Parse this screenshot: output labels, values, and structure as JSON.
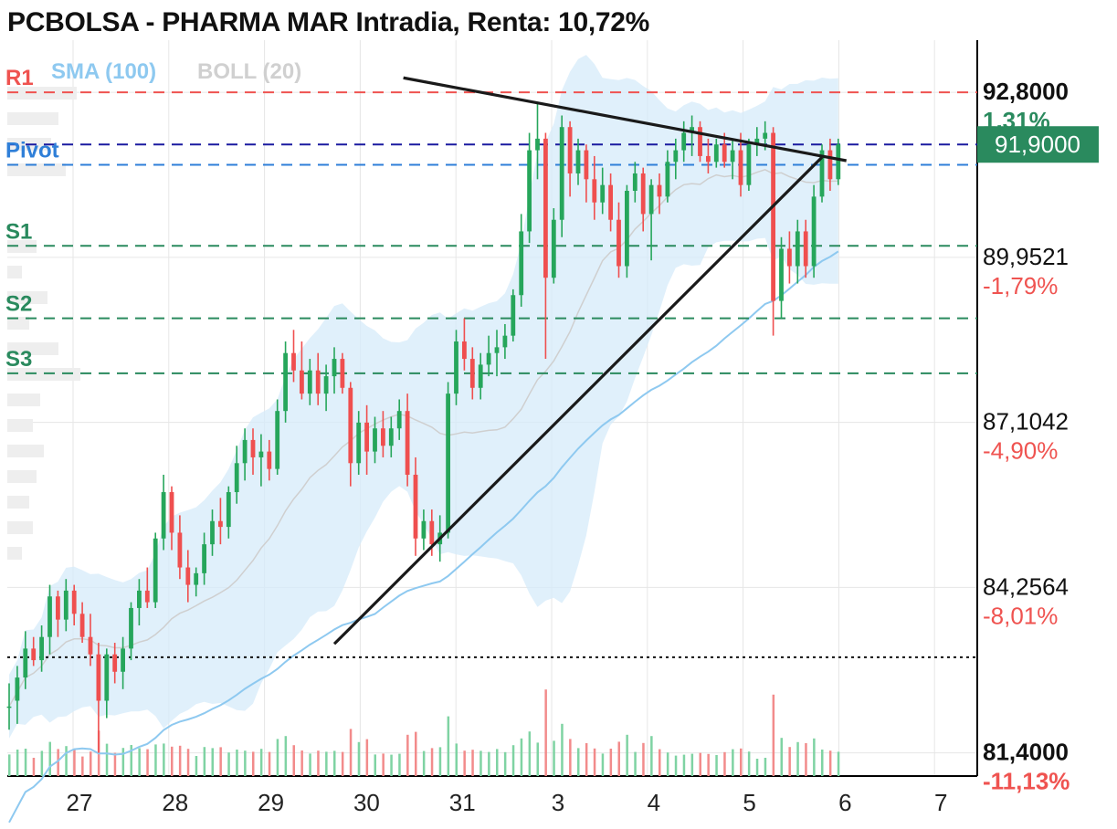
{
  "title": "PCBOLSA - PHARMA MAR Intradia, Renta: 10,72%",
  "indicators": [
    {
      "label": "SMA (100)",
      "color": "#8ec9f0"
    },
    {
      "label": "BOLL (20)",
      "color": "#d0d0d0"
    }
  ],
  "chart_data": {
    "type": "candlestick",
    "title": "PCBOLSA - PHARMA MAR Intradia, Renta: 10,72%",
    "ylim": [
      81.0,
      93.7
    ],
    "grid": true,
    "x_ticks": [
      "27",
      "28",
      "29",
      "30",
      "31",
      "3",
      "4",
      "5",
      "6",
      "7"
    ],
    "price_axis": [
      {
        "price": 92.8,
        "label": "92,8000",
        "pct": "1,31%",
        "bold": true,
        "pct_color": "#2a8a5e"
      },
      {
        "price": 89.9521,
        "label": "89,9521",
        "pct": "-1,79%",
        "bold": false,
        "pct_color": "#ef5350"
      },
      {
        "price": 87.1042,
        "label": "87,1042",
        "pct": "-4,90%",
        "bold": false,
        "pct_color": "#ef5350"
      },
      {
        "price": 84.2564,
        "label": "84,2564",
        "pct": "-8,01%",
        "bold": false,
        "pct_color": "#ef5350"
      },
      {
        "price": 81.4,
        "label": "81,4000",
        "pct": "-11,13%",
        "bold": true,
        "pct_color": "#ef5350"
      }
    ],
    "last_price": {
      "value": 91.9,
      "label": "91,9000",
      "color": "#2a8a5e"
    },
    "levels": [
      {
        "name": "R1",
        "price": 92.8,
        "color": "#ef5350"
      },
      {
        "name": "",
        "price": 91.9,
        "color": "#1a1aa0"
      },
      {
        "name": "Pivot",
        "price": 91.55,
        "color": "#2f7fd8"
      },
      {
        "name": "S1",
        "price": 90.15,
        "color": "#2a8a5e"
      },
      {
        "name": "S2",
        "price": 88.9,
        "color": "#2a8a5e"
      },
      {
        "name": "S3",
        "price": 87.95,
        "color": "#2a8a5e"
      }
    ],
    "reference_close": 83.05,
    "trendlines": [
      {
        "from": [
          48.5,
          93.05
        ],
        "to": [
          103,
          91.62
        ]
      },
      {
        "from": [
          40,
          83.28
        ],
        "to": [
          100,
          91.68
        ]
      }
    ],
    "candles": [
      [
        82.2,
        82.6,
        81.8,
        82.2
      ],
      [
        82.3,
        82.9,
        81.9,
        82.7
      ],
      [
        82.7,
        83.5,
        82.5,
        83.2
      ],
      [
        83.2,
        83.4,
        82.9,
        83.0
      ],
      [
        83.0,
        83.6,
        82.8,
        83.4
      ],
      [
        83.4,
        84.3,
        83.1,
        84.1
      ],
      [
        84.1,
        84.2,
        83.4,
        83.7
      ],
      [
        83.7,
        84.4,
        83.5,
        84.2
      ],
      [
        84.2,
        84.3,
        83.6,
        83.8
      ],
      [
        83.8,
        84.0,
        83.3,
        83.4
      ],
      [
        83.4,
        83.8,
        82.9,
        83.1
      ],
      [
        83.1,
        83.3,
        81.4,
        82.3
      ],
      [
        82.3,
        83.2,
        82.0,
        83.1
      ],
      [
        83.1,
        83.3,
        82.6,
        82.8
      ],
      [
        82.8,
        83.4,
        82.5,
        83.2
      ],
      [
        83.2,
        84.0,
        83.0,
        83.9
      ],
      [
        83.9,
        84.4,
        83.6,
        84.2
      ],
      [
        84.2,
        84.6,
        83.9,
        84.0
      ],
      [
        84.0,
        85.2,
        83.9,
        85.1
      ],
      [
        85.1,
        86.2,
        84.9,
        85.9
      ],
      [
        85.9,
        86.0,
        84.9,
        85.2
      ],
      [
        85.2,
        85.5,
        84.4,
        84.6
      ],
      [
        84.6,
        84.9,
        84.0,
        84.3
      ],
      [
        84.3,
        84.6,
        84.1,
        84.5
      ],
      [
        84.5,
        85.2,
        84.3,
        85.0
      ],
      [
        85.0,
        85.6,
        84.8,
        85.4
      ],
      [
        85.4,
        85.8,
        85.0,
        85.3
      ],
      [
        85.3,
        86.0,
        85.1,
        85.9
      ],
      [
        85.9,
        86.7,
        85.7,
        86.4
      ],
      [
        86.4,
        87.0,
        86.1,
        86.8
      ],
      [
        86.8,
        87.0,
        86.2,
        86.5
      ],
      [
        86.5,
        86.9,
        86.0,
        86.6
      ],
      [
        86.6,
        86.8,
        86.1,
        86.3
      ],
      [
        86.3,
        87.5,
        86.2,
        87.3
      ],
      [
        87.3,
        88.5,
        87.1,
        88.3
      ],
      [
        88.3,
        88.7,
        87.8,
        88.0
      ],
      [
        88.0,
        88.5,
        87.5,
        87.6
      ],
      [
        87.6,
        88.2,
        87.4,
        88.0
      ],
      [
        88.0,
        88.3,
        87.4,
        87.6
      ],
      [
        87.6,
        88.1,
        87.3,
        87.9
      ],
      [
        87.9,
        88.4,
        87.6,
        88.2
      ],
      [
        88.2,
        88.3,
        87.6,
        87.7
      ],
      [
        87.7,
        87.8,
        86.0,
        86.4
      ],
      [
        86.4,
        87.3,
        86.2,
        87.1
      ],
      [
        87.1,
        87.4,
        86.2,
        86.6
      ],
      [
        86.6,
        87.2,
        86.4,
        87.0
      ],
      [
        87.0,
        87.3,
        86.5,
        86.7
      ],
      [
        86.7,
        87.2,
        86.5,
        87.0
      ],
      [
        87.0,
        87.5,
        86.8,
        87.3
      ],
      [
        87.3,
        87.6,
        86.0,
        86.2
      ],
      [
        86.2,
        86.5,
        84.8,
        85.1
      ],
      [
        85.1,
        85.6,
        84.9,
        85.4
      ],
      [
        85.4,
        85.6,
        84.8,
        85.0
      ],
      [
        85.0,
        85.5,
        84.7,
        85.2
      ],
      [
        85.2,
        87.8,
        85.1,
        87.6
      ],
      [
        87.6,
        88.7,
        87.4,
        88.5
      ],
      [
        88.5,
        88.9,
        88.0,
        88.2
      ],
      [
        88.2,
        88.4,
        87.5,
        87.7
      ],
      [
        87.7,
        88.3,
        87.5,
        88.1
      ],
      [
        88.1,
        88.6,
        87.9,
        88.3
      ],
      [
        88.3,
        88.7,
        87.9,
        88.4
      ],
      [
        88.4,
        88.8,
        88.2,
        88.6
      ],
      [
        88.6,
        89.4,
        88.5,
        89.3
      ],
      [
        89.3,
        90.7,
        89.1,
        90.4
      ],
      [
        90.4,
        92.1,
        90.2,
        91.8
      ],
      [
        91.8,
        92.6,
        91.3,
        92.0
      ],
      [
        92.0,
        92.1,
        88.2,
        89.6
      ],
      [
        89.6,
        90.8,
        89.5,
        90.6
      ],
      [
        90.6,
        92.4,
        90.3,
        92.2
      ],
      [
        92.2,
        92.3,
        91.0,
        91.4
      ],
      [
        91.4,
        92.0,
        91.2,
        91.8
      ],
      [
        91.8,
        91.9,
        90.9,
        91.3
      ],
      [
        91.3,
        91.7,
        90.6,
        90.9
      ],
      [
        90.9,
        91.5,
        90.7,
        91.2
      ],
      [
        91.2,
        91.4,
        90.4,
        90.6
      ],
      [
        90.6,
        90.9,
        89.6,
        89.8
      ],
      [
        89.8,
        91.2,
        89.6,
        91.1
      ],
      [
        91.1,
        91.6,
        90.9,
        91.4
      ],
      [
        91.4,
        91.5,
        90.4,
        90.7
      ],
      [
        90.7,
        91.3,
        89.9,
        91.2
      ],
      [
        91.2,
        91.4,
        90.7,
        91.0
      ],
      [
        91.0,
        91.8,
        90.9,
        91.6
      ],
      [
        91.6,
        92.0,
        91.3,
        91.8
      ],
      [
        91.8,
        92.3,
        91.6,
        92.1
      ],
      [
        92.1,
        92.4,
        91.7,
        92.2
      ],
      [
        92.2,
        92.3,
        91.6,
        91.7
      ],
      [
        91.7,
        92.0,
        91.4,
        91.6
      ],
      [
        91.6,
        92.0,
        91.5,
        91.9
      ],
      [
        91.9,
        92.1,
        91.5,
        91.6
      ],
      [
        91.6,
        92.0,
        91.3,
        91.8
      ],
      [
        91.8,
        92.1,
        91.0,
        91.2
      ],
      [
        91.2,
        92.0,
        91.1,
        91.9
      ],
      [
        91.9,
        92.2,
        91.7,
        92.0
      ],
      [
        92.0,
        92.3,
        91.8,
        92.1
      ],
      [
        92.1,
        92.2,
        88.6,
        89.2
      ],
      [
        89.2,
        90.3,
        88.9,
        90.1
      ],
      [
        90.1,
        90.4,
        89.5,
        89.8
      ],
      [
        89.8,
        90.6,
        89.5,
        90.4
      ],
      [
        90.4,
        90.6,
        89.6,
        89.8
      ],
      [
        89.8,
        91.2,
        89.6,
        91.0
      ],
      [
        91.0,
        91.9,
        90.9,
        91.8
      ],
      [
        91.8,
        92.0,
        91.1,
        91.3
      ],
      [
        91.3,
        92.0,
        91.2,
        91.9
      ]
    ]
  }
}
